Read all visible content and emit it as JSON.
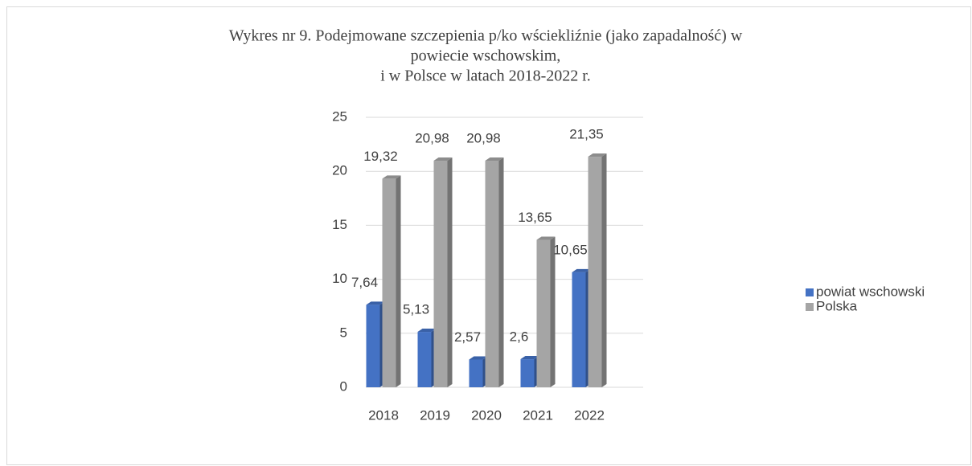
{
  "chart_data": {
    "type": "bar3d",
    "title": [
      "Wykres nr 9. Podejmowane szczepienia p/ko wściekliźnie (jako zapadalność) w",
      "powiecie wschowskim,",
      "i w Polsce w latach 2018-2022 r."
    ],
    "categories": [
      "2018",
      "2019",
      "2020",
      "2021",
      "2022"
    ],
    "series": [
      {
        "name": "powiat wschowski",
        "color": "#4472c4",
        "values": [
          7.64,
          5.13,
          2.57,
          2.6,
          10.65
        ],
        "value_labels": [
          "7,64",
          "5,13",
          "2,57",
          "2,6",
          "10,65"
        ]
      },
      {
        "name": "Polska",
        "color": "#a5a5a5",
        "values": [
          19.32,
          20.98,
          20.98,
          13.65,
          21.35
        ],
        "value_labels": [
          "19,32",
          "20,98",
          "20,98",
          "13,65",
          "21,35"
        ]
      }
    ],
    "ylim": [
      0,
      25
    ],
    "yticks": [
      0,
      5,
      10,
      15,
      20,
      25
    ],
    "grid": true,
    "legend": "right"
  }
}
